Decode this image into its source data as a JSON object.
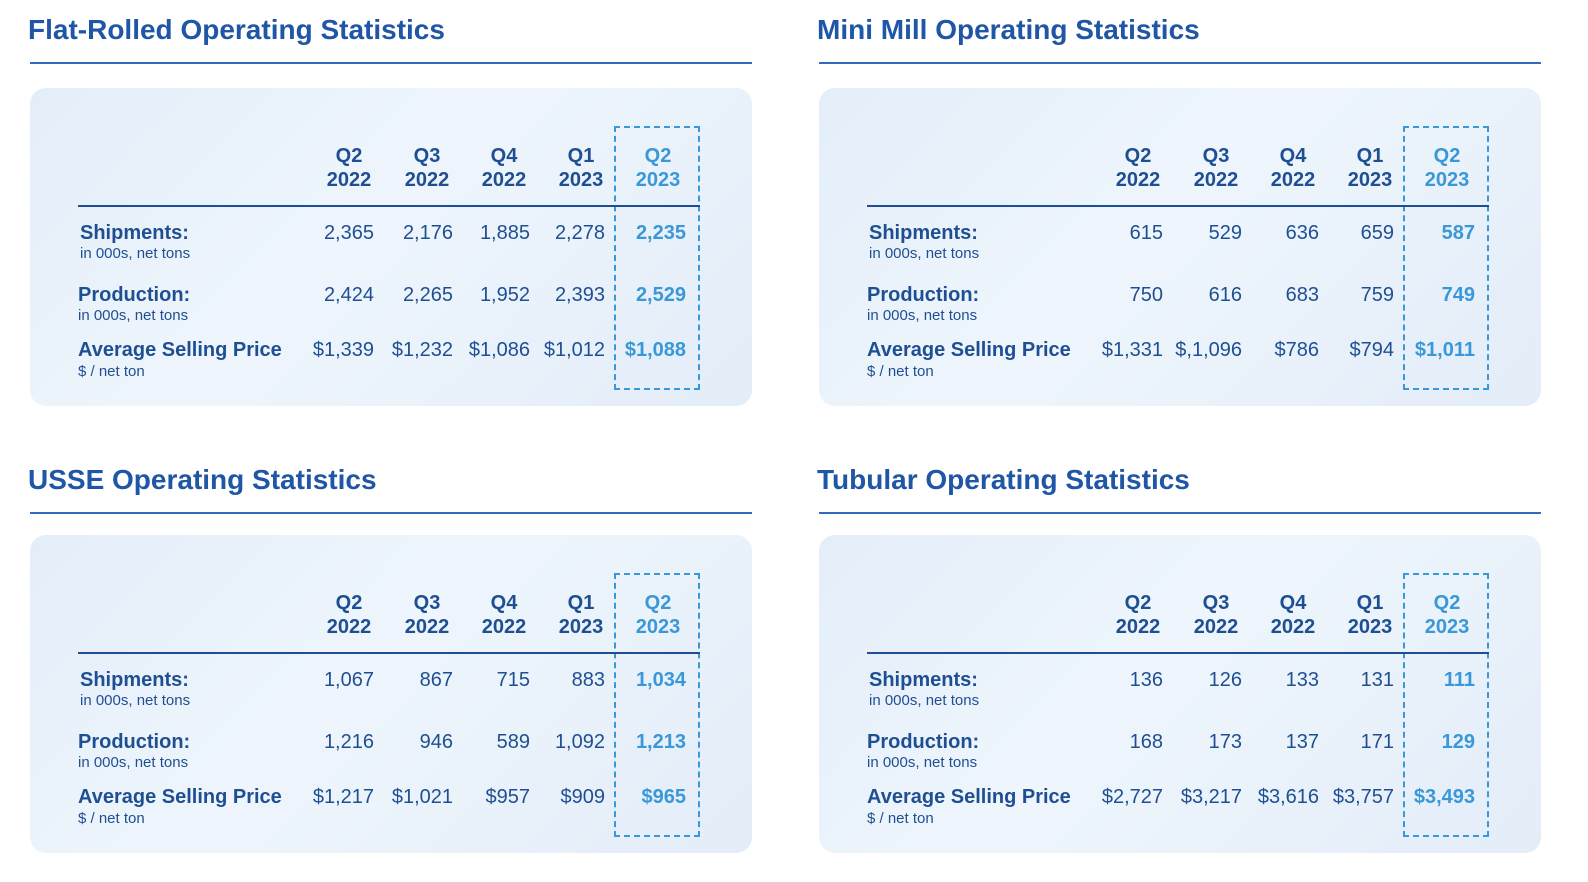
{
  "column_headers": [
    {
      "quarter": "Q2",
      "year": "2022"
    },
    {
      "quarter": "Q3",
      "year": "2022"
    },
    {
      "quarter": "Q4",
      "year": "2022"
    },
    {
      "quarter": "Q1",
      "year": "2023"
    },
    {
      "quarter": "Q2",
      "year": "2023"
    }
  ],
  "row_labels": [
    {
      "label": "Shipments:",
      "unit": "in 000s, net tons"
    },
    {
      "label": "Production:",
      "unit": "in 000s, net tons"
    },
    {
      "label": "Average Selling Price",
      "unit": "$ / net ton"
    }
  ],
  "sections": [
    {
      "title": "Flat-Rolled Operating Statistics",
      "rows": [
        [
          "2,365",
          "2,176",
          "1,885",
          "2,278",
          "2,235"
        ],
        [
          "2,424",
          "2,265",
          "1,952",
          "2,393",
          "2,529"
        ],
        [
          "$1,339",
          "$1,232",
          "$1,086",
          "$1,012",
          "$1,088"
        ]
      ]
    },
    {
      "title": "Mini Mill Operating Statistics",
      "rows": [
        [
          "615",
          "529",
          "636",
          "659",
          "587"
        ],
        [
          "750",
          "616",
          "683",
          "759",
          "749"
        ],
        [
          "$1,331",
          "$,1,096",
          "$786",
          "$794",
          "$1,011"
        ]
      ]
    },
    {
      "title": "USSE Operating Statistics",
      "rows": [
        [
          "1,067",
          "867",
          "715",
          "883",
          "1,034"
        ],
        [
          "1,216",
          "946",
          "589",
          "1,092",
          "1,213"
        ],
        [
          "$1,217",
          "$1,021",
          "$957",
          "$909",
          "$965"
        ]
      ]
    },
    {
      "title": "Tubular Operating Statistics",
      "rows": [
        [
          "136",
          "126",
          "133",
          "131",
          "111"
        ],
        [
          "168",
          "173",
          "137",
          "171",
          "129"
        ],
        [
          "$2,727",
          "$3,217",
          "$3,616",
          "$3,757",
          "$3,493"
        ]
      ]
    }
  ]
}
